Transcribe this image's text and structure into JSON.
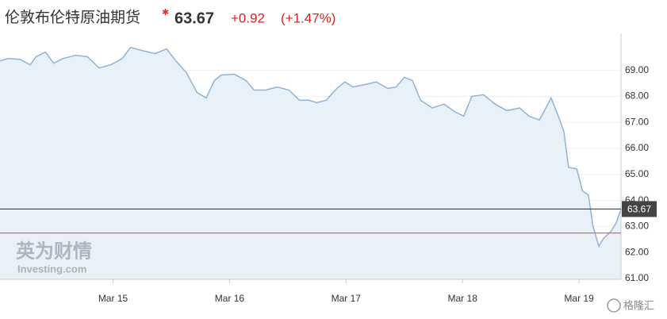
{
  "chart_data": {
    "type": "area",
    "title": "伦敦布伦特原油期货",
    "price": "63.67",
    "change": "+0.92",
    "change_pct": "(+1.47%)",
    "watermark": "英为财情",
    "watermark_sub": "Investing.com",
    "source": "格隆汇",
    "color": "#8fb3d6",
    "fill": "#e9f1f8",
    "grid": true,
    "x": [
      14.03,
      14.1,
      14.2,
      14.29,
      14.34,
      14.42,
      14.49,
      14.57,
      14.68,
      14.78,
      14.88,
      14.98,
      15.08,
      15.15,
      15.25,
      15.36,
      15.46,
      15.54,
      15.63,
      15.72,
      15.8,
      15.87,
      15.93,
      16.04,
      16.14,
      16.21,
      16.31,
      16.41,
      16.51,
      16.6,
      16.68,
      16.75,
      16.83,
      16.92,
      16.99,
      17.06,
      17.16,
      17.26,
      17.36,
      17.43,
      17.5,
      17.57,
      17.64,
      17.74,
      17.84,
      17.94,
      18.01,
      18.08,
      18.18,
      18.28,
      18.38,
      18.49,
      18.57,
      18.66,
      18.76,
      18.83,
      18.87,
      18.91,
      18.98,
      19.03,
      19.08,
      19.12,
      19.17,
      19.21,
      19.27,
      19.32,
      19.36
    ],
    "values": [
      69.36,
      69.45,
      69.42,
      69.21,
      69.52,
      69.7,
      69.27,
      69.45,
      69.58,
      69.52,
      69.09,
      69.21,
      69.45,
      69.88,
      69.76,
      69.64,
      69.82,
      69.36,
      68.91,
      68.15,
      67.94,
      68.61,
      68.82,
      68.85,
      68.61,
      68.24,
      68.24,
      68.36,
      68.24,
      67.85,
      67.85,
      67.76,
      67.85,
      68.3,
      68.55,
      68.36,
      68.45,
      68.55,
      68.3,
      68.36,
      68.73,
      68.61,
      67.85,
      67.55,
      67.7,
      67.39,
      67.24,
      68.0,
      68.06,
      67.7,
      67.45,
      67.55,
      67.24,
      67.09,
      67.94,
      67.15,
      66.64,
      65.27,
      65.21,
      64.36,
      64.21,
      63.0,
      62.24,
      62.55,
      62.79,
      63.15,
      63.67
    ],
    "xlim": [
      14.03,
      19.36
    ],
    "xticks": [
      {
        "value": 15,
        "label": "Mar 15"
      },
      {
        "value": 16,
        "label": "Mar 16"
      },
      {
        "value": 17,
        "label": "Mar 17"
      },
      {
        "value": 18,
        "label": "Mar 18"
      },
      {
        "value": 19,
        "label": "Mar 19"
      }
    ],
    "ylim": [
      60.97,
      70.42
    ],
    "yticks": [
      {
        "value": 61,
        "label": "61.00"
      },
      {
        "value": 62,
        "label": "62.00"
      },
      {
        "value": 63,
        "label": "63.00"
      },
      {
        "value": 64,
        "label": "64.00"
      },
      {
        "value": 65,
        "label": "65.00"
      },
      {
        "value": 66,
        "label": "66.00"
      },
      {
        "value": 67,
        "label": "67.00"
      },
      {
        "value": 68,
        "label": "68.00"
      },
      {
        "value": 69,
        "label": "69.00"
      }
    ],
    "reference_lines": [
      {
        "value": 63.67,
        "label": "63.67",
        "color": "#444444"
      },
      {
        "value": 62.75,
        "color": "#e06666"
      }
    ]
  }
}
